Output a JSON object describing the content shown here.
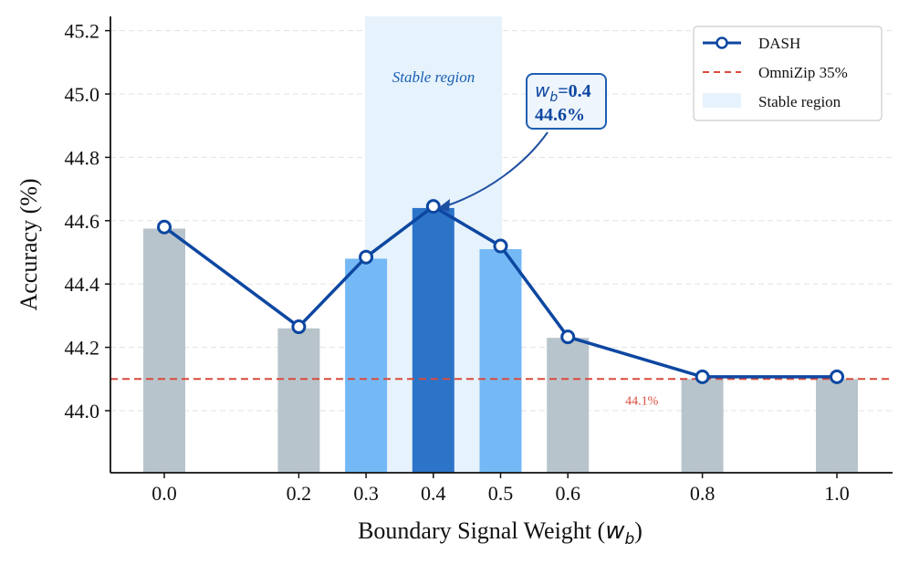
{
  "chart_data": {
    "type": "bar+line",
    "xlabel": "Boundary Signal Weight (",
    "xlabel_var": "w",
    "xlabel_sub": "b",
    "xlabel_close": ")",
    "ylabel": "Accuracy (%)",
    "ylim": [
      43.8,
      45.24
    ],
    "yticks": [
      44.0,
      44.2,
      44.4,
      44.6,
      44.8,
      45.0,
      45.2
    ],
    "ytick_labels": [
      "44.0",
      "44.2",
      "44.4",
      "44.6",
      "44.8",
      "45.0",
      "45.2"
    ],
    "x": [
      0.0,
      0.2,
      0.3,
      0.4,
      0.5,
      0.6,
      0.8,
      1.0
    ],
    "x_labels": [
      "0.0",
      "0.2",
      "0.3",
      "0.4",
      "0.5",
      "0.6",
      "0.8",
      "1.0"
    ],
    "bars": {
      "values": [
        44.575,
        44.26,
        44.48,
        44.64,
        44.51,
        44.23,
        44.1,
        44.1
      ],
      "colors": [
        "#b8c4cb",
        "#b8c4cb",
        "#74b9f5",
        "#2c74c8",
        "#74b9f5",
        "#b8c4cb",
        "#b8c4cb",
        "#b8c4cb"
      ]
    },
    "series": [
      {
        "name": "DASH",
        "values": [
          44.58,
          44.265,
          44.485,
          44.645,
          44.52,
          44.233,
          44.107,
          44.107
        ],
        "color": "#0d47a1"
      }
    ],
    "reference_line": {
      "name": "OmniZip 35%",
      "value": 44.1,
      "label": "44.1%",
      "color": "#d94a3d"
    },
    "shaded_region": {
      "name": "Stable region",
      "x_from": 0.3,
      "x_to": 0.5,
      "label": "Stable region",
      "color": "#e6f2fc"
    },
    "annotation": {
      "var": "w",
      "sub": "b",
      "value_text": "=0.4",
      "acc_text": "44.6%",
      "target_x": 0.4,
      "target_y": 44.645
    },
    "legend": {
      "position": "top-right",
      "entries": [
        {
          "label": "DASH",
          "kind": "line-marker"
        },
        {
          "label": "OmniZip 35%",
          "kind": "dashed"
        },
        {
          "label": "Stable region",
          "kind": "patch"
        }
      ]
    }
  }
}
